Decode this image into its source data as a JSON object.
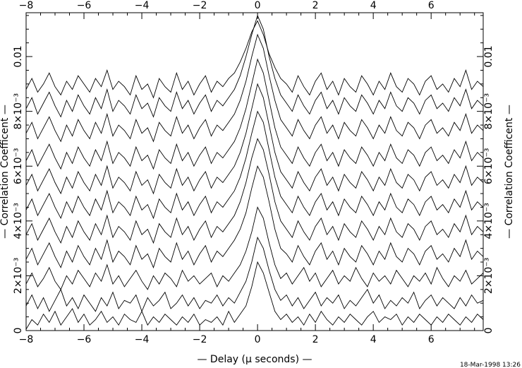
{
  "chart_data": {
    "type": "line",
    "title": "",
    "xlabel": "— Delay (μ seconds) —",
    "ylabel": "— Correlation Coefficent —",
    "xlim": [
      -8,
      7.8
    ],
    "ylim": [
      0,
      0.0116
    ],
    "grid": false,
    "legend": "none",
    "x_ticks": [
      -8,
      -6,
      -4,
      -2,
      0,
      2,
      4,
      6
    ],
    "x_tick_labels": [
      "−8",
      "−6",
      "−4",
      "−2",
      "0",
      "2",
      "4",
      "6"
    ],
    "y_ticks": [
      0,
      0.002,
      0.004,
      0.006,
      0.008,
      0.01
    ],
    "y_tick_labels": [
      "0",
      "2×10⁻³",
      "4×10⁻³",
      "6×10⁻³",
      "8×10⁻³",
      "0.01"
    ],
    "timestamp": "18-Mar-1998 13:26",
    "line_color": "#000000",
    "series": [
      {
        "x_start": -8,
        "x_step": 0.2,
        "values": [
          5e-05,
          0.0004,
          0.0002,
          0.0006,
          0.0003,
          0.0007,
          0.0002,
          0.0005,
          0.0008,
          0.0003,
          0.0006,
          0.0002,
          0.0004,
          0.0007,
          0.0003,
          0.0005,
          0.0002,
          0.0006,
          0.0004,
          0.0003,
          0.0007,
          0.0002,
          0.0005,
          0.0003,
          0.0006,
          0.0004,
          0.0002,
          0.0005,
          0.0003,
          0.0006,
          0.0002,
          0.0004,
          0.0003,
          0.0005,
          0.0002,
          0.0007,
          0.0003,
          0.0006,
          0.0009,
          0.0016,
          0.0025,
          0.0021,
          0.0014,
          0.0007,
          0.0004,
          0.0006,
          0.0003,
          0.0005,
          0.0002,
          0.0006,
          0.0003,
          0.0007,
          0.0004,
          0.0002,
          0.0005,
          0.0003,
          0.0006,
          0.0004,
          0.0002,
          0.0005,
          0.0007,
          0.0003,
          0.0005,
          0.0004,
          0.0006,
          0.0002,
          0.0005,
          0.0003,
          0.0006,
          0.0004,
          0.0002,
          0.0005,
          0.0003,
          0.0006,
          0.0004,
          0.0002,
          0.0005,
          0.0003,
          0.0006,
          0.0004
        ]
      },
      {
        "x_start": -8,
        "x_step": 0.2,
        "values": [
          0.0009,
          0.0013,
          0.0008,
          0.0012,
          0.0007,
          0.0011,
          0.0015,
          0.0009,
          0.0012,
          0.0008,
          0.0013,
          0.001,
          0.0007,
          0.0012,
          0.0009,
          0.0014,
          0.0008,
          0.0011,
          0.001,
          0.0013,
          0.0007,
          0.0012,
          0.0009,
          0.0011,
          0.0014,
          0.0008,
          0.001,
          0.0013,
          0.0009,
          0.0012,
          0.0008,
          0.0011,
          0.001,
          0.0013,
          0.0009,
          0.0012,
          0.001,
          0.0014,
          0.0018,
          0.0025,
          0.0034,
          0.003,
          0.0022,
          0.0015,
          0.0011,
          0.0013,
          0.0009,
          0.0012,
          0.0008,
          0.0011,
          0.0014,
          0.0009,
          0.0012,
          0.001,
          0.0013,
          0.0008,
          0.0011,
          0.0009,
          0.0012,
          0.0015,
          0.001,
          0.0013,
          0.0008,
          0.0011,
          0.0009,
          0.0012,
          0.001,
          0.0014,
          0.0008,
          0.0011,
          0.0013,
          0.0009,
          0.0012,
          0.001,
          0.0008,
          0.0012,
          0.0009,
          0.0013,
          0.001,
          0.0011
        ]
      },
      {
        "x_start": -8,
        "x_step": 0.2,
        "values": [
          0.0017,
          0.0021,
          0.0016,
          0.0019,
          0.0023,
          0.0018,
          0.0015,
          0.002,
          0.0017,
          0.0022,
          0.0019,
          0.0016,
          0.0021,
          0.0018,
          0.0024,
          0.0017,
          0.002,
          0.0016,
          0.0019,
          0.0022,
          0.0018,
          0.0015,
          0.002,
          0.0017,
          0.0021,
          0.0019,
          0.0016,
          0.0022,
          0.0018,
          0.002,
          0.0017,
          0.0019,
          0.0021,
          0.0016,
          0.002,
          0.0018,
          0.0021,
          0.0024,
          0.0029,
          0.0036,
          0.0045,
          0.0041,
          0.0032,
          0.0024,
          0.0019,
          0.0021,
          0.0017,
          0.002,
          0.0023,
          0.0018,
          0.0021,
          0.0016,
          0.0019,
          0.0022,
          0.0017,
          0.002,
          0.0018,
          0.0023,
          0.0019,
          0.0016,
          0.0021,
          0.0018,
          0.002,
          0.0017,
          0.0022,
          0.0019,
          0.0016,
          0.002,
          0.0018,
          0.0021,
          0.0017,
          0.0023,
          0.0019,
          0.0016,
          0.002,
          0.0018,
          0.0022,
          0.0017,
          0.0019,
          0.0021
        ]
      },
      {
        "x_start": -8,
        "x_step": 0.2,
        "values": [
          0.0026,
          0.003,
          0.0024,
          0.0028,
          0.0032,
          0.0027,
          0.0023,
          0.0029,
          0.0025,
          0.0031,
          0.0027,
          0.0024,
          0.003,
          0.0026,
          0.0033,
          0.0025,
          0.0029,
          0.0027,
          0.0024,
          0.0031,
          0.0026,
          0.0028,
          0.0023,
          0.003,
          0.0027,
          0.0025,
          0.0032,
          0.0026,
          0.0029,
          0.0024,
          0.0028,
          0.0031,
          0.0025,
          0.0029,
          0.0027,
          0.003,
          0.0033,
          0.0037,
          0.0043,
          0.0052,
          0.006,
          0.0056,
          0.0047,
          0.0037,
          0.003,
          0.0028,
          0.0025,
          0.0031,
          0.0027,
          0.0024,
          0.0029,
          0.0032,
          0.0026,
          0.0029,
          0.0024,
          0.003,
          0.0027,
          0.0025,
          0.0031,
          0.0028,
          0.0024,
          0.0029,
          0.0026,
          0.0032,
          0.0027,
          0.0025,
          0.003,
          0.0028,
          0.0024,
          0.0029,
          0.0031,
          0.0026,
          0.0028,
          0.0025,
          0.003,
          0.0027,
          0.0033,
          0.0026,
          0.0029,
          0.0027
        ]
      },
      {
        "x_start": -8,
        "x_step": 0.2,
        "values": [
          0.0035,
          0.0039,
          0.0033,
          0.0037,
          0.0041,
          0.0036,
          0.0032,
          0.0038,
          0.0034,
          0.004,
          0.0036,
          0.0033,
          0.0039,
          0.0035,
          0.0042,
          0.0034,
          0.0038,
          0.0036,
          0.0033,
          0.004,
          0.0035,
          0.0037,
          0.0032,
          0.0039,
          0.0036,
          0.0034,
          0.0041,
          0.0035,
          0.0038,
          0.0033,
          0.0037,
          0.004,
          0.0034,
          0.0038,
          0.0036,
          0.0039,
          0.0042,
          0.0047,
          0.0054,
          0.0063,
          0.007,
          0.0066,
          0.0057,
          0.0047,
          0.004,
          0.0037,
          0.0034,
          0.004,
          0.0036,
          0.0033,
          0.0038,
          0.0041,
          0.0035,
          0.0038,
          0.0033,
          0.0039,
          0.0036,
          0.0034,
          0.004,
          0.0037,
          0.0033,
          0.0038,
          0.0035,
          0.0041,
          0.0036,
          0.0034,
          0.0039,
          0.0037,
          0.0033,
          0.0038,
          0.004,
          0.0035,
          0.0037,
          0.0034,
          0.0039,
          0.0036,
          0.0042,
          0.0035,
          0.0038,
          0.0036
        ]
      },
      {
        "x_start": -8,
        "x_step": 0.2,
        "values": [
          0.0044,
          0.0048,
          0.0042,
          0.0046,
          0.005,
          0.0045,
          0.0041,
          0.0047,
          0.0043,
          0.0049,
          0.0045,
          0.0042,
          0.0048,
          0.0044,
          0.0051,
          0.0043,
          0.0047,
          0.0045,
          0.0042,
          0.0049,
          0.0044,
          0.0046,
          0.0041,
          0.0048,
          0.0045,
          0.0043,
          0.005,
          0.0044,
          0.0047,
          0.0042,
          0.0046,
          0.0049,
          0.0043,
          0.0047,
          0.0045,
          0.0048,
          0.0051,
          0.0056,
          0.0063,
          0.0072,
          0.008,
          0.0076,
          0.0066,
          0.0056,
          0.0049,
          0.0046,
          0.0043,
          0.0049,
          0.0045,
          0.0042,
          0.0047,
          0.005,
          0.0044,
          0.0047,
          0.0042,
          0.0048,
          0.0045,
          0.0043,
          0.0049,
          0.0046,
          0.0042,
          0.0047,
          0.0044,
          0.005,
          0.0045,
          0.0043,
          0.0048,
          0.0046,
          0.0042,
          0.0047,
          0.0049,
          0.0044,
          0.0046,
          0.0043,
          0.0048,
          0.0045,
          0.0051,
          0.0044,
          0.0047,
          0.0045
        ]
      },
      {
        "x_start": -8,
        "x_step": 0.2,
        "values": [
          0.0053,
          0.0057,
          0.0051,
          0.0055,
          0.0059,
          0.0054,
          0.005,
          0.0056,
          0.0052,
          0.0058,
          0.0054,
          0.0051,
          0.0057,
          0.0053,
          0.006,
          0.0052,
          0.0056,
          0.0054,
          0.0051,
          0.0058,
          0.0053,
          0.0055,
          0.005,
          0.0057,
          0.0054,
          0.0052,
          0.0059,
          0.0053,
          0.0056,
          0.0051,
          0.0055,
          0.0058,
          0.0052,
          0.0056,
          0.0054,
          0.0057,
          0.006,
          0.0065,
          0.0072,
          0.0081,
          0.009,
          0.0085,
          0.0075,
          0.0065,
          0.0058,
          0.0055,
          0.0052,
          0.0058,
          0.0054,
          0.0051,
          0.0056,
          0.0059,
          0.0053,
          0.0056,
          0.0051,
          0.0057,
          0.0054,
          0.0052,
          0.0058,
          0.0055,
          0.0051,
          0.0056,
          0.0053,
          0.0059,
          0.0054,
          0.0052,
          0.0057,
          0.0055,
          0.0051,
          0.0056,
          0.0058,
          0.0053,
          0.0055,
          0.0052,
          0.0057,
          0.0054,
          0.006,
          0.0053,
          0.0056,
          0.0054
        ]
      },
      {
        "x_start": -8,
        "x_step": 0.2,
        "values": [
          0.0062,
          0.0066,
          0.006,
          0.0064,
          0.0068,
          0.0063,
          0.0059,
          0.0065,
          0.0061,
          0.0067,
          0.0063,
          0.006,
          0.0066,
          0.0062,
          0.0069,
          0.0061,
          0.0065,
          0.0063,
          0.006,
          0.0067,
          0.0062,
          0.0064,
          0.0059,
          0.0066,
          0.0063,
          0.0061,
          0.0068,
          0.0062,
          0.0065,
          0.006,
          0.0064,
          0.0067,
          0.0061,
          0.0065,
          0.0063,
          0.0066,
          0.0069,
          0.0074,
          0.0081,
          0.009,
          0.0099,
          0.0094,
          0.0084,
          0.0074,
          0.0067,
          0.0064,
          0.0061,
          0.0067,
          0.0063,
          0.006,
          0.0065,
          0.0068,
          0.0062,
          0.0065,
          0.006,
          0.0066,
          0.0063,
          0.0061,
          0.0067,
          0.0064,
          0.006,
          0.0065,
          0.0062,
          0.0068,
          0.0063,
          0.0061,
          0.0066,
          0.0064,
          0.006,
          0.0065,
          0.0067,
          0.0062,
          0.0064,
          0.0061,
          0.0066,
          0.0063,
          0.0069,
          0.0062,
          0.0065,
          0.0063
        ]
      },
      {
        "x_start": -8,
        "x_step": 0.2,
        "values": [
          0.0072,
          0.0076,
          0.007,
          0.0074,
          0.0078,
          0.0073,
          0.0069,
          0.0075,
          0.0071,
          0.0077,
          0.0073,
          0.007,
          0.0076,
          0.0072,
          0.0079,
          0.0071,
          0.0075,
          0.0073,
          0.007,
          0.0077,
          0.0072,
          0.0074,
          0.0069,
          0.0076,
          0.0073,
          0.0071,
          0.0078,
          0.0072,
          0.0075,
          0.007,
          0.0074,
          0.0077,
          0.0071,
          0.0075,
          0.0073,
          0.0076,
          0.0079,
          0.0084,
          0.0091,
          0.01,
          0.0108,
          0.0103,
          0.0093,
          0.0084,
          0.0077,
          0.0074,
          0.0071,
          0.0077,
          0.0073,
          0.007,
          0.0075,
          0.0078,
          0.0072,
          0.0075,
          0.007,
          0.0076,
          0.0073,
          0.0071,
          0.0077,
          0.0074,
          0.007,
          0.0075,
          0.0072,
          0.0078,
          0.0073,
          0.0071,
          0.0076,
          0.0074,
          0.007,
          0.0075,
          0.0077,
          0.0072,
          0.0074,
          0.0071,
          0.0076,
          0.0073,
          0.0079,
          0.0072,
          0.0075,
          0.0073
        ]
      },
      {
        "x_start": -8,
        "x_step": 0.2,
        "values": [
          0.0081,
          0.0085,
          0.0079,
          0.0083,
          0.0087,
          0.0082,
          0.0078,
          0.0084,
          0.008,
          0.0086,
          0.0082,
          0.0079,
          0.0085,
          0.0081,
          0.0088,
          0.008,
          0.0084,
          0.0082,
          0.0079,
          0.0086,
          0.0081,
          0.0083,
          0.0078,
          0.0085,
          0.0082,
          0.008,
          0.0087,
          0.0081,
          0.0084,
          0.0079,
          0.0083,
          0.0086,
          0.008,
          0.0084,
          0.0082,
          0.0085,
          0.0088,
          0.0093,
          0.01,
          0.0108,
          0.0115,
          0.011,
          0.01,
          0.0092,
          0.0086,
          0.0083,
          0.008,
          0.0086,
          0.0082,
          0.0079,
          0.0084,
          0.0087,
          0.0081,
          0.0084,
          0.0079,
          0.0085,
          0.0082,
          0.008,
          0.0086,
          0.0083,
          0.0079,
          0.0084,
          0.0081,
          0.0087,
          0.0082,
          0.008,
          0.0085,
          0.0083,
          0.0079,
          0.0084,
          0.0086,
          0.0081,
          0.0083,
          0.008,
          0.0085,
          0.0082,
          0.0088,
          0.0081,
          0.0084,
          0.0082
        ]
      },
      {
        "x_start": -8,
        "x_step": 0.2,
        "values": [
          0.0088,
          0.0092,
          0.0087,
          0.009,
          0.0094,
          0.0089,
          0.0086,
          0.0091,
          0.0088,
          0.0093,
          0.009,
          0.0087,
          0.0092,
          0.0089,
          0.0095,
          0.0088,
          0.0091,
          0.0089,
          0.0086,
          0.0093,
          0.0088,
          0.009,
          0.0085,
          0.0092,
          0.0089,
          0.0087,
          0.0094,
          0.0088,
          0.0091,
          0.0086,
          0.009,
          0.0093,
          0.0087,
          0.0091,
          0.0089,
          0.0092,
          0.0094,
          0.0098,
          0.0103,
          0.0109,
          0.0113,
          0.0108,
          0.0101,
          0.0096,
          0.0092,
          0.009,
          0.0087,
          0.0093,
          0.0089,
          0.0086,
          0.0091,
          0.0094,
          0.0088,
          0.0091,
          0.0086,
          0.0092,
          0.0089,
          0.0087,
          0.0093,
          0.009,
          0.0086,
          0.0091,
          0.0088,
          0.0094,
          0.0089,
          0.0087,
          0.0092,
          0.009,
          0.0086,
          0.0091,
          0.0093,
          0.0088,
          0.009,
          0.0087,
          0.0092,
          0.0089,
          0.0095,
          0.0088,
          0.0091,
          0.0089
        ]
      }
    ]
  }
}
